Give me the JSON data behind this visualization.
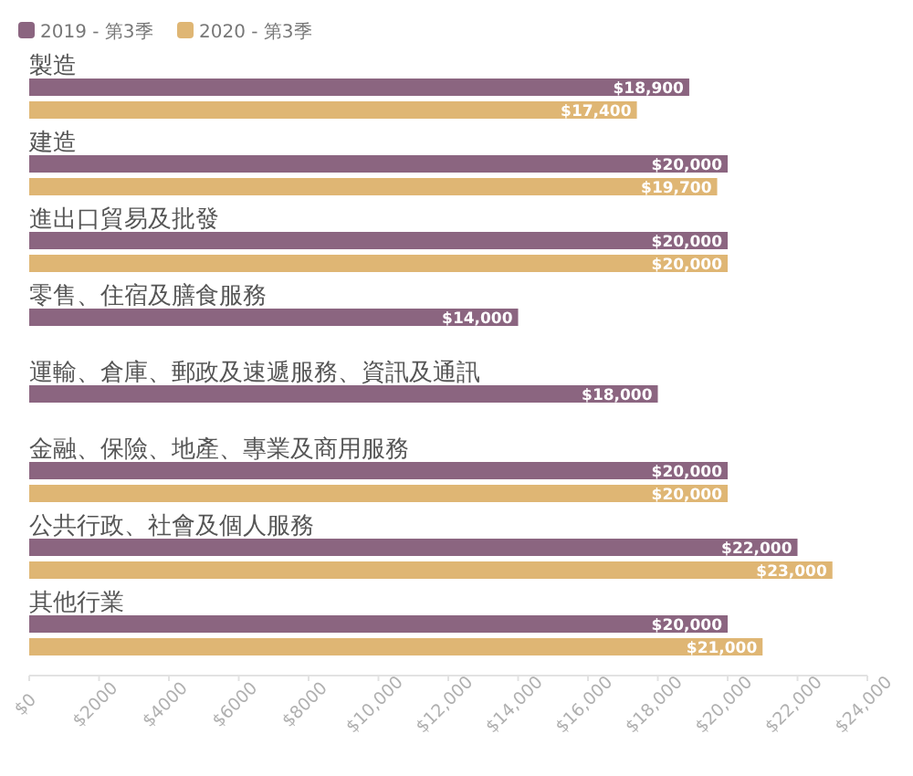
{
  "chart_data": {
    "type": "bar",
    "orientation": "horizontal",
    "categories": [
      "製造",
      "建造",
      "進出口貿易及批發",
      "零售、住宿及膳食服務",
      "運輸、倉庫、郵政及速遞服務、資訊及通訊",
      "金融、保險、地產、專業及商用服務",
      "公共行政、社會及個人服務",
      "其他行業"
    ],
    "series": [
      {
        "name": "2019 - 第3季",
        "color": "#8b6580",
        "values": [
          18900,
          20000,
          20000,
          14000,
          18000,
          20000,
          22000,
          20000
        ],
        "value_labels": [
          "$18,900",
          "$20,000",
          "$20,000",
          "$14,000",
          "$18,000",
          "$20,000",
          "$22,000",
          "$20,000"
        ]
      },
      {
        "name": "2020 - 第3季",
        "color": "#dfb674",
        "values": [
          17400,
          19700,
          20000,
          null,
          null,
          20000,
          23000,
          21000
        ],
        "value_labels": [
          "$17,400",
          "$19,700",
          "$20,000",
          null,
          null,
          "$20,000",
          "$23,000",
          "$21,000"
        ]
      }
    ],
    "xlim": [
      0,
      24000
    ],
    "xticks": [
      {
        "value": 0,
        "label": "$0"
      },
      {
        "value": 2000,
        "label": "$2000"
      },
      {
        "value": 4000,
        "label": "$4000"
      },
      {
        "value": 6000,
        "label": "$6000"
      },
      {
        "value": 8000,
        "label": "$8000"
      },
      {
        "value": 10000,
        "label": "$10,000"
      },
      {
        "value": 12000,
        "label": "$12,000"
      },
      {
        "value": 14000,
        "label": "$14,000"
      },
      {
        "value": 16000,
        "label": "$16,000"
      },
      {
        "value": 18000,
        "label": "$18,000"
      },
      {
        "value": 20000,
        "label": "$20,000"
      },
      {
        "value": 22000,
        "label": "$22,000"
      },
      {
        "value": 24000,
        "label": "$24,000"
      }
    ],
    "legend": "top left"
  }
}
